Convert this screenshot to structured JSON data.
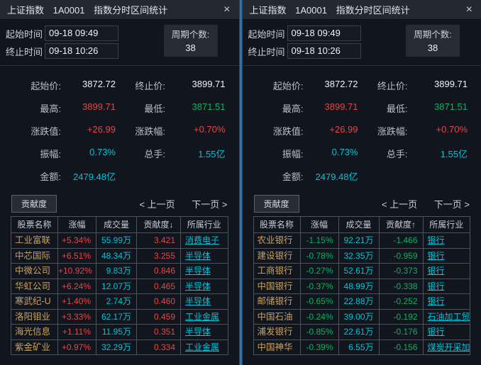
{
  "colors": {
    "up_red": "#e54747",
    "down_green": "#0db264",
    "cyan_value": "#00c5d7",
    "stock_name_tan": "#c8a263",
    "divider_blue": "#3c86bc",
    "background": "#11151d",
    "titlebar": "#232833"
  },
  "panels": [
    {
      "title": {
        "index_name": "上证指数",
        "code": "1A0001",
        "subtitle": "指数分时区间统计"
      },
      "close_glyph": "×",
      "time_fields": [
        {
          "label": "起始时间",
          "value": "09-18 09:49"
        },
        {
          "label": "终止时间",
          "value": "09-18 10:26"
        }
      ],
      "period_count": {
        "label": "周期个数:",
        "value": "38"
      },
      "stats": [
        {
          "label": "起始价:",
          "value": "3872.72",
          "color": "white"
        },
        {
          "label": "终止价:",
          "value": "3899.71",
          "color": "white"
        },
        {
          "label": "最高:",
          "value": "3899.71",
          "color": "red"
        },
        {
          "label": "最低:",
          "value": "3871.51",
          "color": "green"
        },
        {
          "label": "涨跌值:",
          "value": "+26.99",
          "color": "red"
        },
        {
          "label": "涨跌幅:",
          "value": "+0.70%",
          "color": "red"
        },
        {
          "label": "振幅:",
          "value": "0.73%",
          "color": "cyan"
        },
        {
          "label": "总手:",
          "value": "1.55亿",
          "color": "cyan"
        },
        {
          "label": "金额:",
          "value": "2479.48亿",
          "color": "cyan"
        }
      ],
      "tab": "贡献度",
      "pagination": {
        "prev": "< 上一页",
        "next": "下一页 >"
      },
      "table": {
        "headers": [
          "股票名称",
          "涨幅",
          "成交量",
          "贡献度↓",
          "所属行业"
        ],
        "value_color": "red",
        "rows": [
          {
            "name": "工业富联",
            "change": "+5.34%",
            "volume": "55.99万",
            "contribution": "3.421",
            "industry": "消费电子"
          },
          {
            "name": "中芯国际",
            "change": "+6.51%",
            "volume": "48.34万",
            "contribution": "3.255",
            "industry": "半导体"
          },
          {
            "name": "中微公司",
            "change": "+10.92%",
            "volume": "9.83万",
            "contribution": "0.846",
            "industry": "半导体"
          },
          {
            "name": "华虹公司",
            "change": "+6.24%",
            "volume": "12.07万",
            "contribution": "0.465",
            "industry": "半导体"
          },
          {
            "name": "寒武纪-U",
            "change": "+1.40%",
            "volume": "2.74万",
            "contribution": "0.460",
            "industry": "半导体"
          },
          {
            "name": "洛阳钼业",
            "change": "+3.33%",
            "volume": "62.17万",
            "contribution": "0.459",
            "industry": "工业金属"
          },
          {
            "name": "海光信息",
            "change": "+1.11%",
            "volume": "11.95万",
            "contribution": "0.351",
            "industry": "半导体"
          },
          {
            "name": "紫金矿业",
            "change": "+0.97%",
            "volume": "32.29万",
            "contribution": "0.334",
            "industry": "工业金属"
          }
        ]
      }
    },
    {
      "title": {
        "index_name": "上证指数",
        "code": "1A0001",
        "subtitle": "指数分时区间统计"
      },
      "close_glyph": "×",
      "time_fields": [
        {
          "label": "起始时间",
          "value": "09-18 09:49"
        },
        {
          "label": "终止时间",
          "value": "09-18 10:26"
        }
      ],
      "period_count": {
        "label": "周期个数:",
        "value": "38"
      },
      "stats": [
        {
          "label": "起始价:",
          "value": "3872.72",
          "color": "white"
        },
        {
          "label": "终止价:",
          "value": "3899.71",
          "color": "white"
        },
        {
          "label": "最高:",
          "value": "3899.71",
          "color": "red"
        },
        {
          "label": "最低:",
          "value": "3871.51",
          "color": "green"
        },
        {
          "label": "涨跌值:",
          "value": "+26.99",
          "color": "red"
        },
        {
          "label": "涨跌幅:",
          "value": "+0.70%",
          "color": "red"
        },
        {
          "label": "振幅:",
          "value": "0.73%",
          "color": "cyan"
        },
        {
          "label": "总手:",
          "value": "1.55亿",
          "color": "cyan"
        },
        {
          "label": "金额:",
          "value": "2479.48亿",
          "color": "cyan"
        }
      ],
      "tab": "贡献度",
      "pagination": {
        "prev": "< 上一页",
        "next": "下一页 >"
      },
      "table": {
        "headers": [
          "股票名称",
          "涨幅",
          "成交量",
          "贡献度↑",
          "所属行业"
        ],
        "value_color": "green",
        "rows": [
          {
            "name": "农业银行",
            "change": "-1.15%",
            "volume": "92.21万",
            "contribution": "-1.466",
            "industry": "银行"
          },
          {
            "name": "建设银行",
            "change": "-0.78%",
            "volume": "32.35万",
            "contribution": "-0.959",
            "industry": "银行"
          },
          {
            "name": "工商银行",
            "change": "-0.27%",
            "volume": "52.61万",
            "contribution": "-0.373",
            "industry": "银行"
          },
          {
            "name": "中国银行",
            "change": "-0.37%",
            "volume": "48.99万",
            "contribution": "-0.338",
            "industry": "银行"
          },
          {
            "name": "邮储银行",
            "change": "-0.65%",
            "volume": "22.88万",
            "contribution": "-0.252",
            "industry": "银行"
          },
          {
            "name": "中国石油",
            "change": "-0.24%",
            "volume": "39.00万",
            "contribution": "-0.192",
            "industry": "石油加工贸"
          },
          {
            "name": "浦发银行",
            "change": "-0.85%",
            "volume": "22.61万",
            "contribution": "-0.176",
            "industry": "银行"
          },
          {
            "name": "中国神华",
            "change": "-0.39%",
            "volume": "6.55万",
            "contribution": "-0.156",
            "industry": "煤炭开采加"
          }
        ]
      }
    }
  ]
}
